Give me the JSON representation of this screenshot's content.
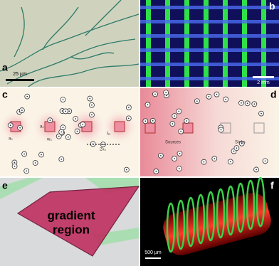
{
  "panels": [
    {
      "label": "a",
      "scale_bar": "25 µm"
    },
    {
      "label": "b",
      "scale_bar": "2 mm"
    },
    {
      "label": "c",
      "annotations": [
        "a₀",
        "a₀",
        "w₀",
        "λ₀",
        "2λ₀"
      ]
    },
    {
      "label": "d",
      "annotations": [
        "Sources",
        "Sinks"
      ]
    },
    {
      "label": "e",
      "annotations": [
        "gradient",
        "region"
      ]
    },
    {
      "label": "f",
      "scale_bar": "500 µm"
    }
  ]
}
